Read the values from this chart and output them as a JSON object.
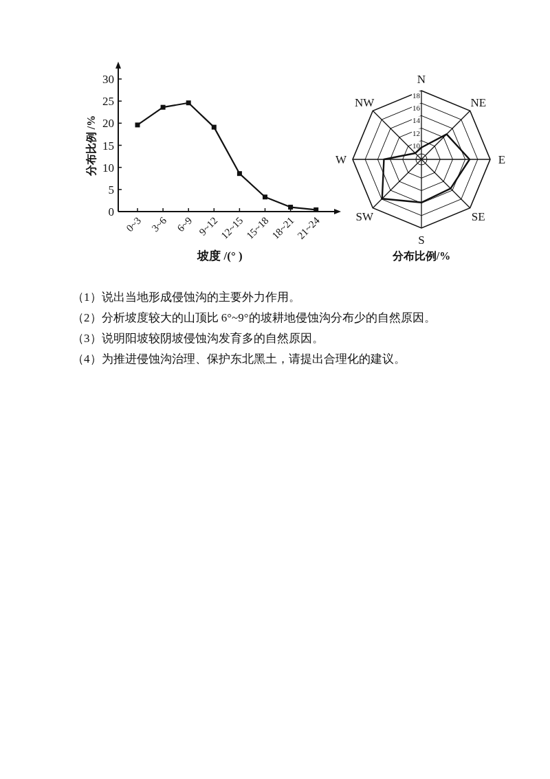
{
  "chart_data": [
    {
      "type": "line",
      "xlabel": "坡度 /(° )",
      "ylabel": "分布比例 /%",
      "categories": [
        "0~3",
        "3~6",
        "6~9",
        "9~12",
        "12~15",
        "15~18",
        "18~21",
        "21~24"
      ],
      "series": [
        {
          "color": "#111111",
          "values": [
            19.6,
            23.6,
            24.6,
            19.1,
            8.6,
            3.3,
            1.0,
            0.4
          ]
        }
      ],
      "ylim": [
        0,
        33
      ],
      "yticks": [
        0,
        5,
        10,
        15,
        20,
        25,
        30
      ],
      "marker": "square",
      "grid": false,
      "annotations": [
        "（1）说出当地形成侵蚀沟的主要外力作用。",
        "（2）分析坡度较大的山顶比 6°~9°的坡耕地侵蚀沟分布少的自然原因。",
        "（3）说明阳坡较阴坡侵蚀沟发育多的自然原因。",
        "（4）为推进侵蚀沟治理、保护东北黑土，请提出合理化的建议。"
      ]
    },
    {
      "type": "radar",
      "title": "分布比例/%",
      "categories": [
        "N",
        "NE",
        "E",
        "SE",
        "S",
        "SW",
        "W",
        "NW"
      ],
      "series": [
        {
          "color": "#111111",
          "values": [
            8.9,
            12.7,
            14.7,
            13.6,
            13.9,
            15.9,
            13.0,
            8.4
          ]
        }
      ],
      "ylim": [
        7,
        18
      ],
      "yticks": [
        10,
        12,
        14,
        16,
        18
      ],
      "grid": true
    }
  ]
}
